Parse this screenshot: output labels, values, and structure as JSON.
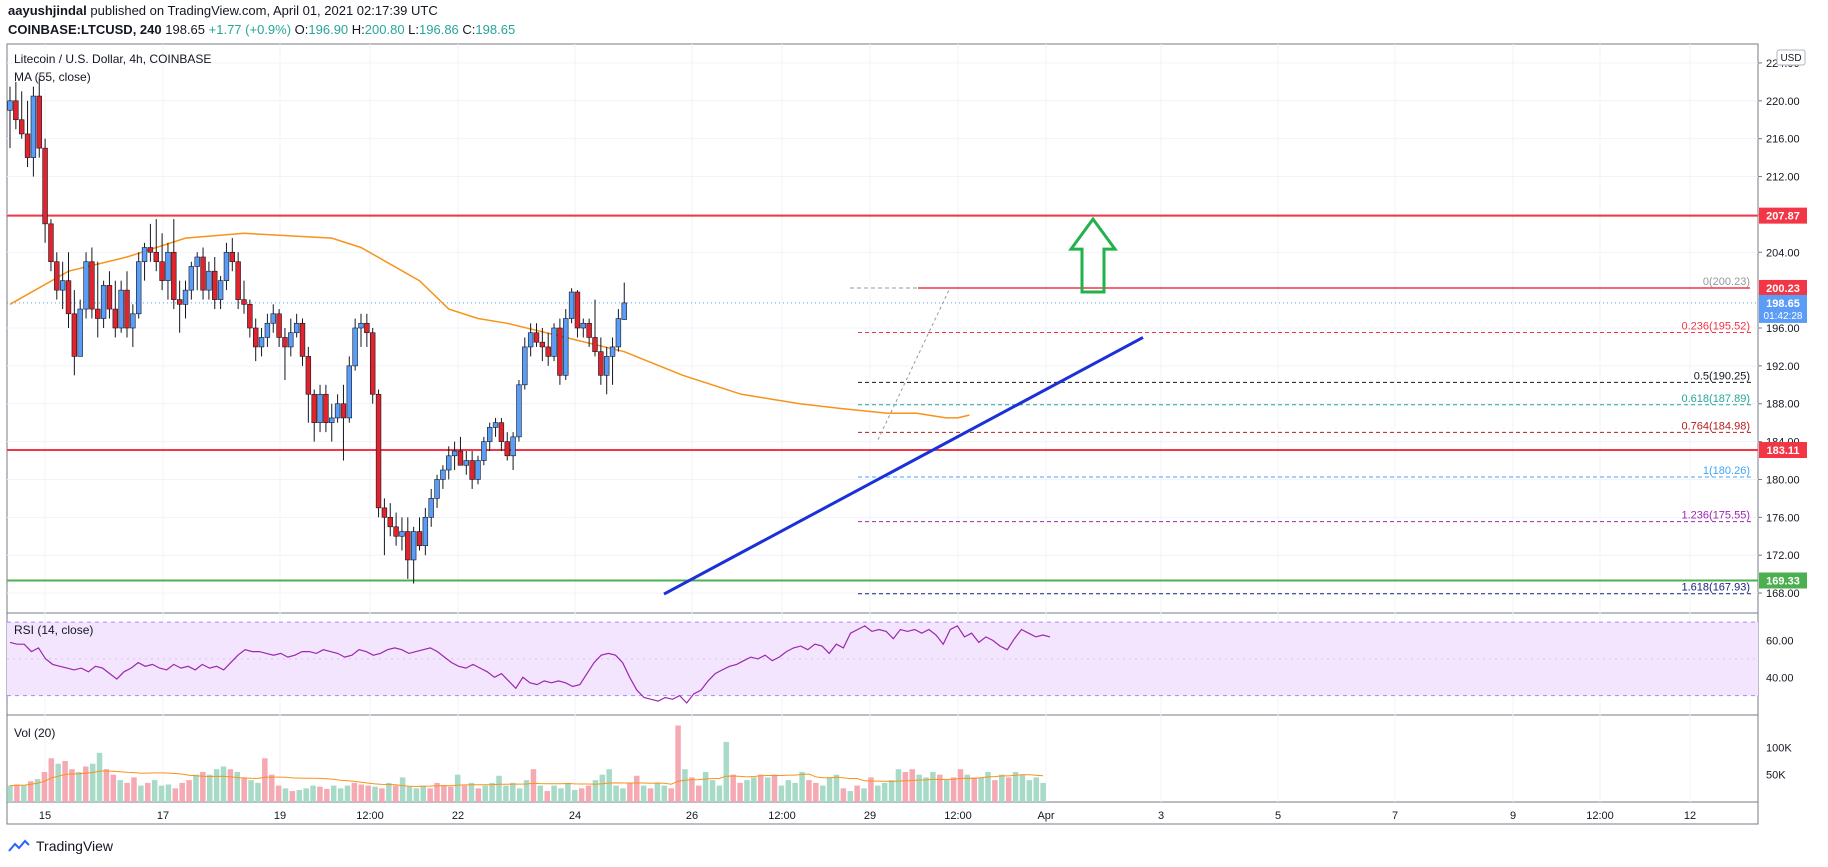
{
  "header": {
    "publisher": "aayushjindal",
    "published_text": "published on TradingView.com, April 01, 2021 02:17:39 UTC",
    "symbol": "COINBASE:LTCUSD, 240",
    "last": "198.65",
    "change": "+1.77 (+0.9%)",
    "o_label": "O:",
    "o": "196.90",
    "h_label": "H:",
    "h": "200.80",
    "l_label": "L:",
    "l": "196.86",
    "c_label": "C:",
    "c": "198.65"
  },
  "footer": {
    "brand": "TradingView"
  },
  "chart_data": {
    "type": "candlestick",
    "title": "Litecoin / U.S. Dollar, 4h, COINBASE",
    "indicator_label": "MA (55, close)",
    "currency_badge": "USD",
    "ylim": [
      166,
      226
    ],
    "y_ticks": [
      "224.00",
      "220.00",
      "216.00",
      "212.00",
      "208.00",
      "204.00",
      "196.00",
      "192.00",
      "188.00",
      "184.00",
      "180.00",
      "176.00",
      "172.00",
      "168.00"
    ],
    "x_ticks": [
      "15",
      "17",
      "19",
      "12:00",
      "22",
      "24",
      "26",
      "12:00",
      "29",
      "12:00",
      "Apr",
      "3",
      "5",
      "7",
      "9",
      "12:00",
      "12"
    ],
    "candles": [
      [
        219.0,
        221.5,
        215.0,
        220.0
      ],
      [
        220.0,
        222.0,
        217.0,
        218.0
      ],
      [
        218.0,
        221.0,
        216.0,
        216.5
      ],
      [
        216.5,
        220.0,
        213.0,
        214.0
      ],
      [
        214.0,
        221.5,
        212.0,
        220.5
      ],
      [
        220.5,
        222.5,
        214.0,
        215.0
      ],
      [
        215.0,
        216.0,
        205.0,
        207.0
      ],
      [
        207.0,
        207.5,
        202.0,
        203.0
      ],
      [
        203.0,
        204.0,
        199.0,
        200.0
      ],
      [
        200.0,
        203.0,
        198.0,
        201.0
      ],
      [
        201.0,
        204.0,
        196.0,
        197.5
      ],
      [
        197.5,
        200.0,
        191.0,
        193.0
      ],
      [
        193.0,
        199.0,
        193.0,
        198.0
      ],
      [
        198.0,
        204.0,
        197.0,
        203.0
      ],
      [
        203.0,
        204.5,
        197.0,
        198.0
      ],
      [
        198.0,
        203.0,
        195.0,
        197.0
      ],
      [
        197.0,
        201.0,
        196.0,
        200.5
      ],
      [
        200.5,
        202.0,
        197.0,
        198.0
      ],
      [
        198.0,
        201.0,
        195.0,
        196.0
      ],
      [
        196.0,
        201.0,
        195.5,
        200.0
      ],
      [
        200.0,
        202.0,
        195.0,
        196.0
      ],
      [
        196.0,
        198.5,
        194.0,
        197.5
      ],
      [
        197.5,
        204.0,
        197.0,
        203.0
      ],
      [
        203.0,
        205.0,
        201.0,
        204.5
      ],
      [
        204.5,
        207.0,
        203.0,
        204.0
      ],
      [
        204.0,
        207.5,
        202.0,
        203.0
      ],
      [
        203.0,
        206.0,
        200.0,
        201.0
      ],
      [
        201.0,
        205.0,
        199.0,
        204.0
      ],
      [
        204.0,
        207.5,
        198.0,
        199.0
      ],
      [
        199.0,
        201.0,
        195.5,
        198.5
      ],
      [
        198.5,
        201.0,
        197.0,
        200.0
      ],
      [
        200.0,
        203.0,
        199.0,
        202.5
      ],
      [
        202.5,
        204.0,
        200.0,
        203.5
      ],
      [
        203.5,
        204.5,
        199.0,
        200.0
      ],
      [
        200.0,
        203.0,
        199.0,
        202.0
      ],
      [
        202.0,
        203.5,
        198.0,
        199.0
      ],
      [
        199.0,
        201.5,
        198.0,
        201.0
      ],
      [
        201.0,
        205.0,
        200.0,
        204.0
      ],
      [
        204.0,
        205.5,
        202.0,
        203.0
      ],
      [
        203.0,
        204.0,
        198.0,
        199.0
      ],
      [
        199.0,
        201.0,
        197.5,
        198.5
      ],
      [
        198.5,
        199.0,
        195.0,
        196.0
      ],
      [
        196.0,
        197.0,
        192.5,
        194.0
      ],
      [
        194.0,
        196.0,
        193.0,
        195.0
      ],
      [
        195.0,
        197.5,
        194.0,
        196.5
      ],
      [
        196.5,
        198.5,
        195.5,
        197.5
      ],
      [
        197.5,
        198.0,
        194.0,
        195.0
      ],
      [
        195.0,
        196.0,
        190.5,
        194.0
      ],
      [
        194.0,
        197.0,
        193.0,
        195.5
      ],
      [
        195.5,
        197.5,
        195.0,
        196.5
      ],
      [
        196.5,
        197.0,
        192.0,
        193.0
      ],
      [
        193.0,
        194.0,
        186.0,
        189.0
      ],
      [
        189.0,
        189.5,
        184.0,
        186.0
      ],
      [
        186.0,
        190.0,
        185.0,
        189.0
      ],
      [
        189.0,
        190.0,
        185.0,
        186.0
      ],
      [
        186.0,
        188.0,
        184.0,
        186.5
      ],
      [
        186.5,
        189.0,
        186.0,
        188.0
      ],
      [
        188.0,
        190.0,
        182.0,
        186.5
      ],
      [
        186.5,
        193.0,
        186.0,
        192.0
      ],
      [
        192.0,
        197.0,
        191.5,
        196.0
      ],
      [
        196.0,
        197.5,
        194.0,
        196.5
      ],
      [
        196.5,
        197.5,
        194.0,
        195.5
      ],
      [
        195.5,
        196.0,
        188.0,
        189.0
      ],
      [
        189.0,
        189.5,
        176.0,
        177.0
      ],
      [
        177.0,
        178.0,
        172.0,
        176.0
      ],
      [
        176.0,
        177.5,
        174.0,
        175.0
      ],
      [
        175.0,
        176.5,
        173.0,
        174.0
      ],
      [
        174.0,
        176.0,
        172.5,
        174.5
      ],
      [
        174.5,
        176.0,
        169.5,
        171.5
      ],
      [
        171.5,
        175.0,
        169.0,
        174.5
      ],
      [
        174.5,
        176.0,
        172.5,
        173.0
      ],
      [
        173.0,
        177.0,
        172.0,
        176.0
      ],
      [
        176.0,
        179.0,
        175.0,
        178.0
      ],
      [
        178.0,
        180.5,
        177.0,
        180.0
      ],
      [
        180.0,
        181.5,
        179.0,
        181.0
      ],
      [
        181.0,
        183.5,
        180.0,
        182.5
      ],
      [
        182.5,
        184.0,
        181.0,
        183.0
      ],
      [
        183.0,
        184.5,
        182.0,
        181.5
      ],
      [
        181.5,
        183.0,
        180.5,
        182.0
      ],
      [
        182.0,
        183.0,
        179.0,
        180.0
      ],
      [
        180.0,
        182.5,
        179.5,
        182.0
      ],
      [
        182.0,
        184.5,
        181.5,
        184.0
      ],
      [
        184.0,
        186.0,
        183.0,
        185.5
      ],
      [
        185.5,
        186.5,
        184.5,
        186.0
      ],
      [
        186.0,
        186.5,
        183.0,
        184.0
      ],
      [
        184.0,
        185.0,
        182.0,
        182.5
      ],
      [
        182.5,
        185.0,
        181.0,
        184.5
      ],
      [
        184.5,
        190.5,
        184.0,
        190.0
      ],
      [
        190.0,
        195.0,
        189.5,
        194.0
      ],
      [
        194.0,
        196.5,
        193.0,
        195.5
      ],
      [
        195.5,
        196.5,
        194.0,
        194.5
      ],
      [
        194.5,
        196.0,
        192.5,
        194.0
      ],
      [
        194.0,
        195.5,
        192.0,
        193.0
      ],
      [
        193.0,
        196.5,
        192.5,
        196.0
      ],
      [
        196.0,
        197.0,
        190.0,
        191.0
      ],
      [
        191.0,
        198.0,
        190.5,
        197.0
      ],
      [
        197.0,
        200.2,
        196.5,
        199.8
      ],
      [
        199.8,
        200.0,
        195.0,
        196.0
      ],
      [
        196.0,
        197.0,
        195.0,
        196.5
      ],
      [
        196.5,
        197.0,
        194.0,
        195.0
      ],
      [
        195.0,
        199.0,
        193.0,
        193.5
      ],
      [
        193.5,
        195.0,
        190.0,
        191.0
      ],
      [
        191.0,
        194.0,
        189.0,
        193.0
      ],
      [
        193.0,
        195.0,
        190.0,
        194.0
      ],
      [
        194.0,
        198.0,
        193.5,
        197.0
      ],
      [
        196.9,
        200.8,
        196.86,
        198.65
      ]
    ],
    "ma55": [
      [
        0,
        198.5
      ],
      [
        10,
        202.0
      ],
      [
        20,
        203.5
      ],
      [
        30,
        205.5
      ],
      [
        40,
        206.0
      ],
      [
        55,
        205.5
      ],
      [
        60,
        204.5
      ],
      [
        70,
        201.0
      ],
      [
        75,
        198.0
      ],
      [
        80,
        197.0
      ],
      [
        85,
        196.5
      ],
      [
        95,
        195.0
      ],
      [
        105,
        193.5
      ],
      [
        115,
        191.0
      ],
      [
        125,
        189.0
      ],
      [
        135,
        188.0
      ],
      [
        142,
        187.5
      ],
      [
        150,
        187.0
      ],
      [
        155,
        187.0
      ],
      [
        160,
        186.5
      ],
      [
        162,
        186.5
      ],
      [
        164,
        186.8
      ]
    ],
    "trendline": [
      [
        0,
        167.9
      ],
      [
        89,
        185.2
      ],
      [
        121,
        195.0
      ]
    ],
    "horizontal_levels": [
      {
        "price": 207.87,
        "label": "207.87",
        "color": "#f23645"
      },
      {
        "price": 183.11,
        "label": "183.11",
        "color": "#f23645"
      },
      {
        "price": 169.33,
        "label": "169.33",
        "color": "#4caf50"
      }
    ],
    "fib_levels": [
      {
        "ratio": "0",
        "price": 200.23,
        "color": "#9598a1"
      },
      {
        "ratio": "0.236",
        "price": 195.52,
        "color": "#f23645"
      },
      {
        "ratio": "0.5",
        "price": 190.25,
        "color": "#131722"
      },
      {
        "ratio": "0.618",
        "price": 187.89,
        "color": "#26a69a"
      },
      {
        "ratio": "0.764",
        "price": 184.98,
        "color": "#b71c1c"
      },
      {
        "ratio": "1",
        "price": 180.26,
        "color": "#42a5f5"
      },
      {
        "ratio": "1.236",
        "price": 175.55,
        "color": "#9c27b0"
      },
      {
        "ratio": "1.618",
        "price": 167.93,
        "color": "#1a237e"
      }
    ],
    "price_badges": [
      {
        "price": 200.23,
        "label": "200.23",
        "color": "#f23645"
      },
      {
        "price": 198.65,
        "label": "198.65",
        "sublabel": "01:42:28",
        "color": "#5b9cf6"
      }
    ],
    "rsi": {
      "label": "RSI (14, close)",
      "ticks": [
        "60.00",
        "40.00"
      ],
      "range": [
        20,
        75
      ],
      "bands": [
        70,
        30
      ],
      "values": [
        59,
        58,
        58,
        54,
        56,
        50,
        47,
        46,
        45,
        44,
        45,
        43,
        46,
        45,
        42,
        39,
        43,
        45,
        48,
        46,
        47,
        45,
        44,
        47,
        45,
        46,
        44,
        47,
        45,
        46,
        44,
        48,
        52,
        55,
        54,
        54,
        53,
        52,
        53,
        51,
        52,
        54,
        54,
        53,
        55,
        54,
        53,
        51,
        52,
        55,
        54,
        52,
        53,
        55,
        56,
        55,
        53,
        54,
        55,
        56,
        54,
        51,
        48,
        46,
        45,
        47,
        45,
        43,
        40,
        42,
        38,
        34,
        40,
        37,
        36,
        38,
        37,
        38,
        37,
        35,
        36,
        42,
        48,
        52,
        53,
        52,
        48,
        40,
        33,
        29,
        28,
        27,
        29,
        28,
        30,
        26,
        31,
        33,
        38,
        42,
        44,
        46,
        47,
        49,
        51,
        50,
        52,
        49,
        51,
        54,
        56,
        57,
        55,
        58,
        57,
        53,
        58,
        56,
        64,
        66,
        68,
        65,
        66,
        65,
        61,
        66,
        65,
        66,
        64,
        66,
        63,
        58,
        66,
        68,
        62,
        64,
        59,
        62,
        60,
        57,
        55,
        61,
        66,
        64,
        62,
        63,
        62
      ]
    },
    "volume": {
      "label": "Vol (20)",
      "ticks": [
        "100K",
        "50K"
      ],
      "max": 150,
      "bars": [
        30,
        32,
        30,
        38,
        42,
        55,
        80,
        70,
        75,
        60,
        55,
        65,
        70,
        90,
        60,
        50,
        40,
        35,
        45,
        30,
        35,
        40,
        30,
        32,
        25,
        35,
        40,
        50,
        55,
        50,
        60,
        65,
        60,
        55,
        45,
        40,
        35,
        80,
        50,
        30,
        25,
        20,
        22,
        25,
        30,
        28,
        24,
        30,
        25,
        30,
        35,
        32,
        30,
        28,
        25,
        35,
        30,
        45,
        28,
        25,
        30,
        25,
        35,
        30,
        28,
        50,
        30,
        35,
        25,
        30,
        35,
        48,
        30,
        35,
        25,
        40,
        60,
        30,
        20,
        30,
        25,
        35,
        22,
        25,
        30,
        40,
        50,
        60,
        30,
        25,
        35,
        48,
        30,
        25,
        35,
        30,
        25,
        140,
        60,
        45,
        30,
        55,
        40,
        30,
        110,
        50,
        35,
        40,
        45,
        50,
        45,
        50,
        30,
        40,
        35,
        55,
        40,
        35,
        30,
        45,
        50,
        25,
        20,
        30,
        25,
        45,
        30,
        35,
        40,
        60,
        55,
        60,
        50,
        45,
        55,
        50,
        40,
        45,
        60,
        50,
        45,
        45,
        55,
        40,
        50,
        45,
        55,
        50,
        40,
        45,
        35
      ],
      "up": [
        1,
        0,
        1,
        0,
        1,
        0,
        0,
        1,
        0,
        0,
        1,
        0,
        1,
        1,
        0,
        0,
        1,
        0,
        0,
        1,
        0,
        1,
        1,
        1,
        0,
        0,
        0,
        1,
        0,
        1,
        1,
        1,
        0,
        1,
        0,
        1,
        1,
        0,
        0,
        0,
        1,
        0,
        1,
        1,
        1,
        0,
        0,
        1,
        1,
        1,
        0,
        0,
        0,
        1,
        0,
        1,
        0,
        1,
        1,
        1,
        1,
        0,
        0,
        0,
        0,
        1,
        0,
        1,
        0,
        1,
        1,
        1,
        1,
        1,
        1,
        1,
        0,
        1,
        0,
        1,
        1,
        1,
        1,
        0,
        0,
        1,
        1,
        1,
        1,
        1,
        0,
        0,
        1,
        0,
        1,
        1,
        0,
        0,
        1,
        0,
        0,
        1,
        1,
        1,
        1,
        0,
        0,
        1,
        1,
        0,
        1,
        0,
        1,
        1,
        1,
        1,
        0,
        0,
        1,
        1,
        1,
        0,
        1,
        0,
        1,
        0,
        1,
        1,
        1,
        1,
        0,
        0,
        1,
        1,
        1,
        0,
        1,
        0,
        0,
        1,
        0,
        1,
        1,
        0,
        1,
        0,
        1,
        1,
        1,
        1,
        1
      ]
    }
  }
}
